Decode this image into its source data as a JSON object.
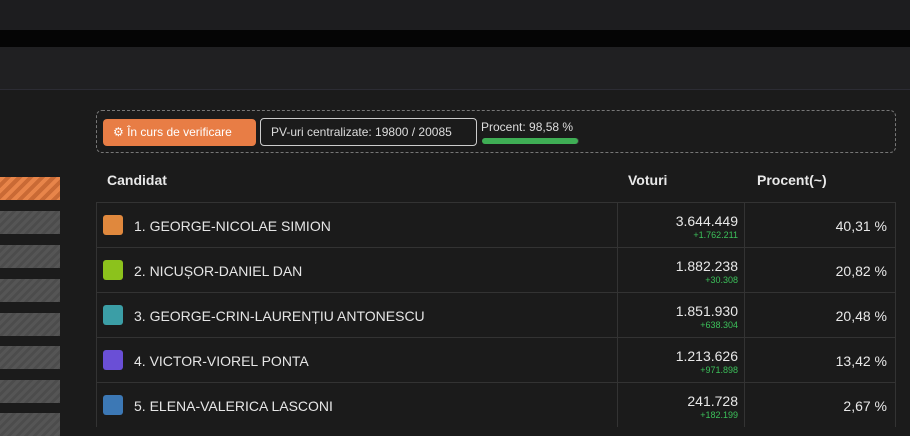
{
  "status": {
    "badge": "În curs de verificare",
    "pv": "PV-uri centralizate: 19800 / 20085",
    "percent_label": "Procent: 98,58 %",
    "percent": 98.58
  },
  "table": {
    "headers": [
      "Candidat",
      "Voturi",
      "Procent(~)"
    ],
    "rows": [
      {
        "name": "1. GEORGE-NICOLAE SIMION",
        "color": "#e0883d",
        "votes": "3.644.449",
        "delta": "+1.762.211",
        "percent": "40,31 %"
      },
      {
        "name": "2. NICUȘOR-DANIEL DAN",
        "color": "#8cc21c",
        "votes": "1.882.238",
        "delta": "+30.308",
        "percent": "20,82 %"
      },
      {
        "name": "3. GEORGE-CRIN-LAURENȚIU ANTONESCU",
        "color": "#3b9ea6",
        "votes": "1.851.930",
        "delta": "+638.304",
        "percent": "20,48 %"
      },
      {
        "name": "4. VICTOR-VIOREL PONTA",
        "color": "#6a4fd6",
        "votes": "1.213.626",
        "delta": "+971.898",
        "percent": "13,42 %"
      },
      {
        "name": "5. ELENA-VALERICA LASCONI",
        "color": "#3c78b5",
        "votes": "241.728",
        "delta": "+182.199",
        "percent": "2,67 %"
      }
    ]
  }
}
